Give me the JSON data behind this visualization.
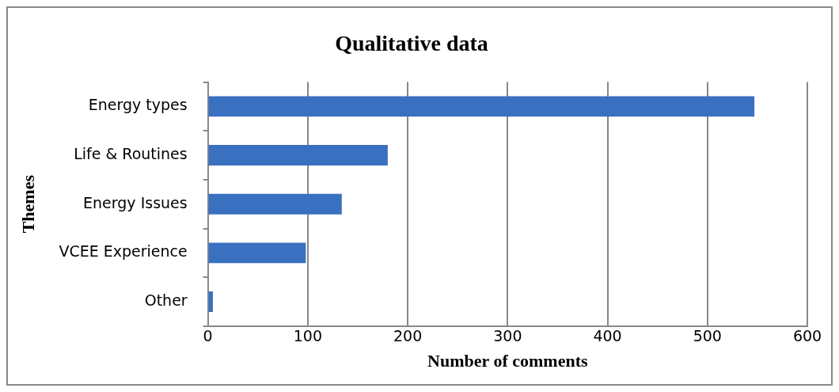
{
  "chart_data": {
    "type": "bar",
    "orientation": "horizontal",
    "title": "Qualitative data",
    "xlabel": "Number of comments",
    "ylabel": "Themes",
    "categories": [
      "Energy types",
      "Life & Routines",
      "Energy Issues",
      "VCEE Experience",
      "Other"
    ],
    "values": [
      547,
      180,
      134,
      98,
      5
    ],
    "color": "#3a70c0",
    "xlim": [
      0,
      600
    ],
    "xticks": [
      0,
      100,
      200,
      300,
      400,
      500,
      600
    ],
    "grid": "x"
  }
}
